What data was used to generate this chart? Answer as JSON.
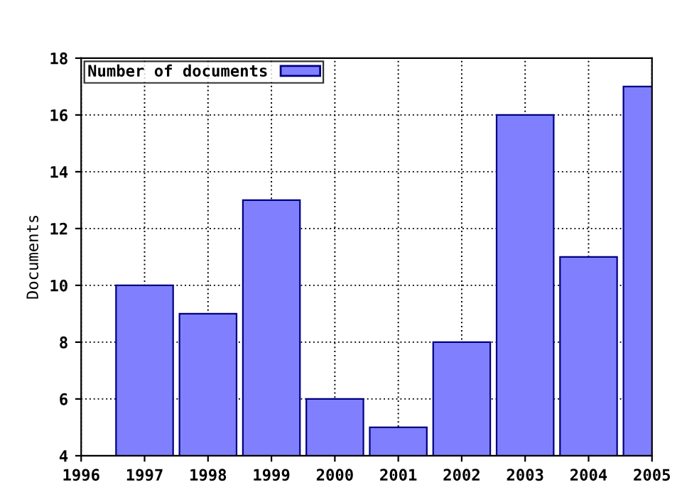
{
  "chart_data": {
    "type": "bar",
    "ylabel": "Documents",
    "x": [
      1997,
      1998,
      1999,
      2000,
      2001,
      2002,
      2003,
      2004,
      2005
    ],
    "series": [
      {
        "name": "Number of documents",
        "color": "#8080ff",
        "values": [
          10,
          9,
          13,
          6,
          5,
          8,
          16,
          11,
          17
        ]
      }
    ],
    "xlim": [
      1996,
      2005
    ],
    "xticks": [
      1996,
      1997,
      1998,
      1999,
      2000,
      2001,
      2002,
      2003,
      2004,
      2005
    ],
    "ylim": [
      4,
      18
    ],
    "yticks": [
      4,
      6,
      8,
      10,
      12,
      14,
      16,
      18
    ],
    "grid": true,
    "legend": "top left"
  }
}
